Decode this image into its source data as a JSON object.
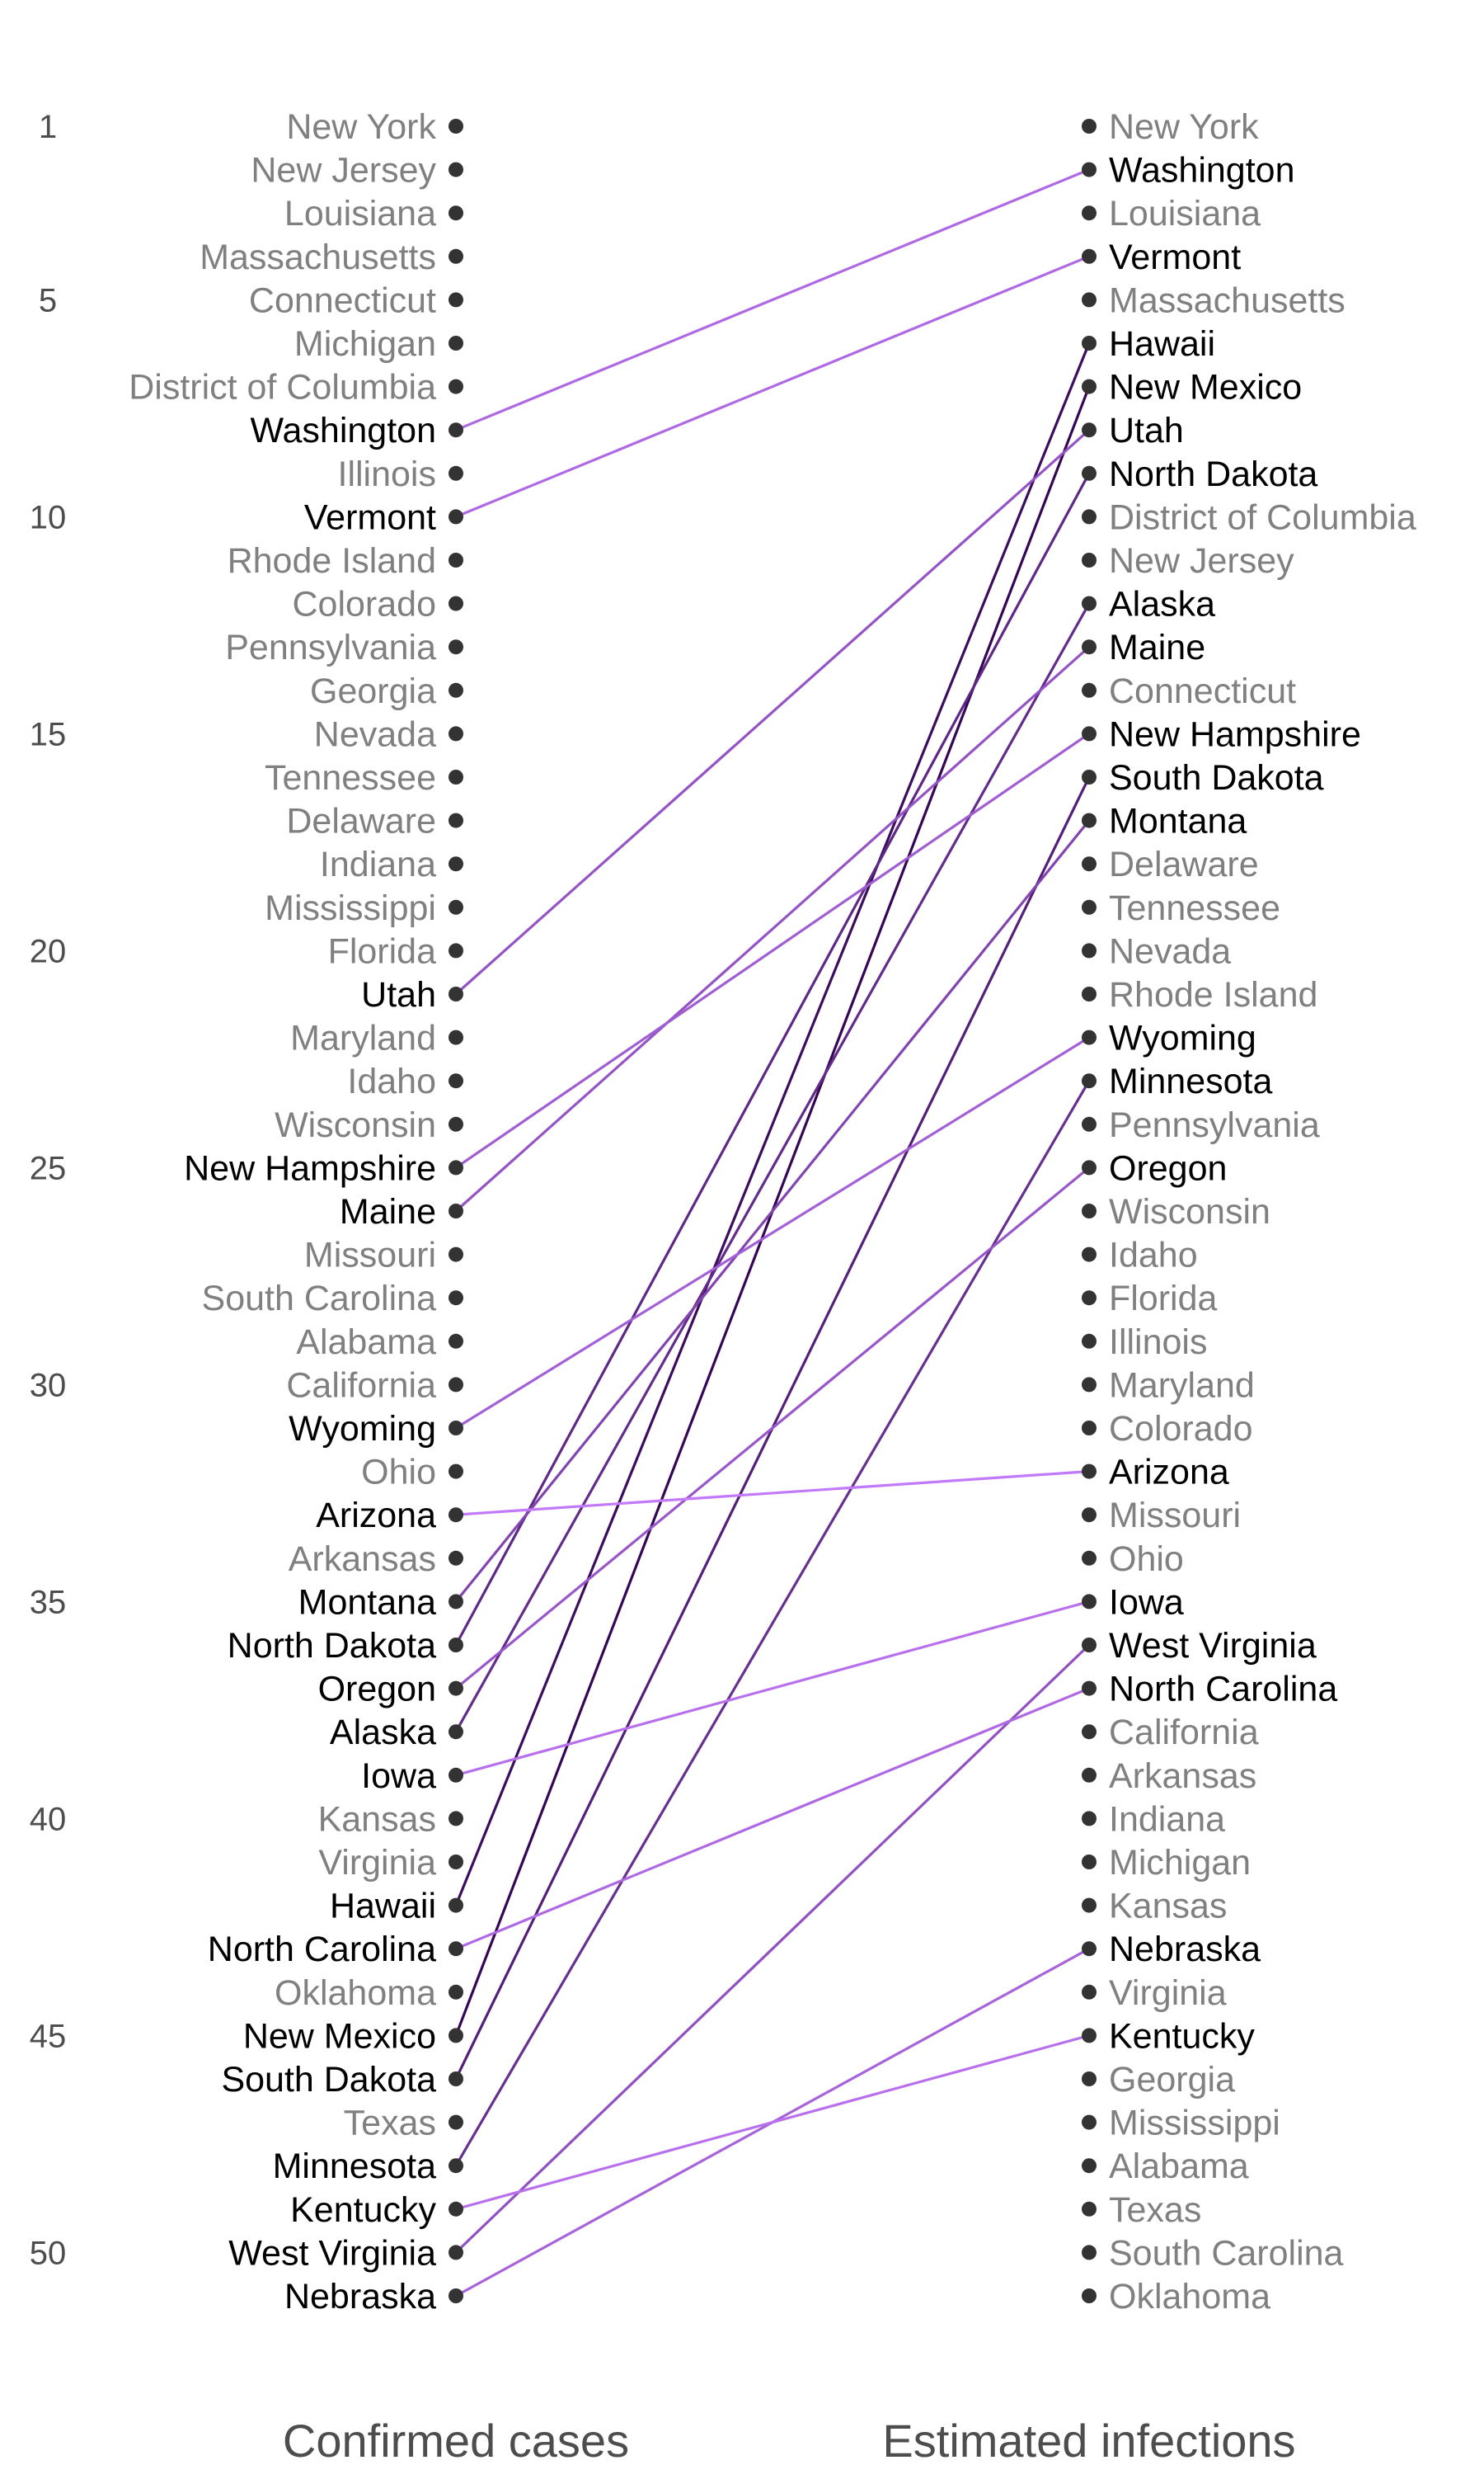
{
  "chart_data": {
    "type": "slope",
    "left_axis_label": "Confirmed cases",
    "right_axis_label": "Estimated infections",
    "rank_ticks": [
      1,
      5,
      10,
      15,
      20,
      25,
      30,
      35,
      40,
      45,
      50
    ],
    "rank_range": [
      1,
      51
    ],
    "left_order": [
      "New York",
      "New Jersey",
      "Louisiana",
      "Massachusetts",
      "Connecticut",
      "Michigan",
      "District of Columbia",
      "Washington",
      "Illinois",
      "Vermont",
      "Rhode Island",
      "Colorado",
      "Pennsylvania",
      "Georgia",
      "Nevada",
      "Tennessee",
      "Delaware",
      "Indiana",
      "Mississippi",
      "Florida",
      "Utah",
      "Maryland",
      "Idaho",
      "Wisconsin",
      "New Hampshire",
      "Maine",
      "Missouri",
      "South Carolina",
      "Alabama",
      "California",
      "Wyoming",
      "Ohio",
      "Arizona",
      "Arkansas",
      "Montana",
      "North Dakota",
      "Oregon",
      "Alaska",
      "Iowa",
      "Kansas",
      "Virginia",
      "Hawaii",
      "North Carolina",
      "Oklahoma",
      "New Mexico",
      "South Dakota",
      "Texas",
      "Minnesota",
      "Kentucky",
      "West Virginia",
      "Nebraska"
    ],
    "right_order": [
      "New York",
      "Washington",
      "Louisiana",
      "Vermont",
      "Massachusetts",
      "Hawaii",
      "New Mexico",
      "Utah",
      "North Dakota",
      "District of Columbia",
      "New Jersey",
      "Alaska",
      "Maine",
      "Connecticut",
      "New Hampshire",
      "South Dakota",
      "Montana",
      "Delaware",
      "Tennessee",
      "Nevada",
      "Rhode Island",
      "Wyoming",
      "Minnesota",
      "Pennsylvania",
      "Oregon",
      "Wisconsin",
      "Idaho",
      "Florida",
      "Illinois",
      "Maryland",
      "Colorado",
      "Arizona",
      "Missouri",
      "Ohio",
      "Iowa",
      "West Virginia",
      "North Carolina",
      "California",
      "Arkansas",
      "Indiana",
      "Michigan",
      "Kansas",
      "Nebraska",
      "Virginia",
      "Kentucky",
      "Georgia",
      "Mississippi",
      "Alabama",
      "Texas",
      "South Carolina",
      "Oklahoma"
    ],
    "highlighted": [
      "Washington",
      "Vermont",
      "Hawaii",
      "New Mexico",
      "Utah",
      "North Dakota",
      "Alaska",
      "Maine",
      "New Hampshire",
      "South Dakota",
      "Montana",
      "Wyoming",
      "Minnesota",
      "Oregon",
      "Arizona",
      "Iowa",
      "West Virginia",
      "North Carolina",
      "Nebraska",
      "Kentucky"
    ],
    "colors": {
      "highlight_text": "#000000",
      "muted_text": "#808080",
      "point": "#333333",
      "tick_text": "#4d4d4d",
      "axis_title": "#4d4d4d",
      "line_low_change": "#c77cff",
      "line_high_change": "#2d004b"
    }
  }
}
